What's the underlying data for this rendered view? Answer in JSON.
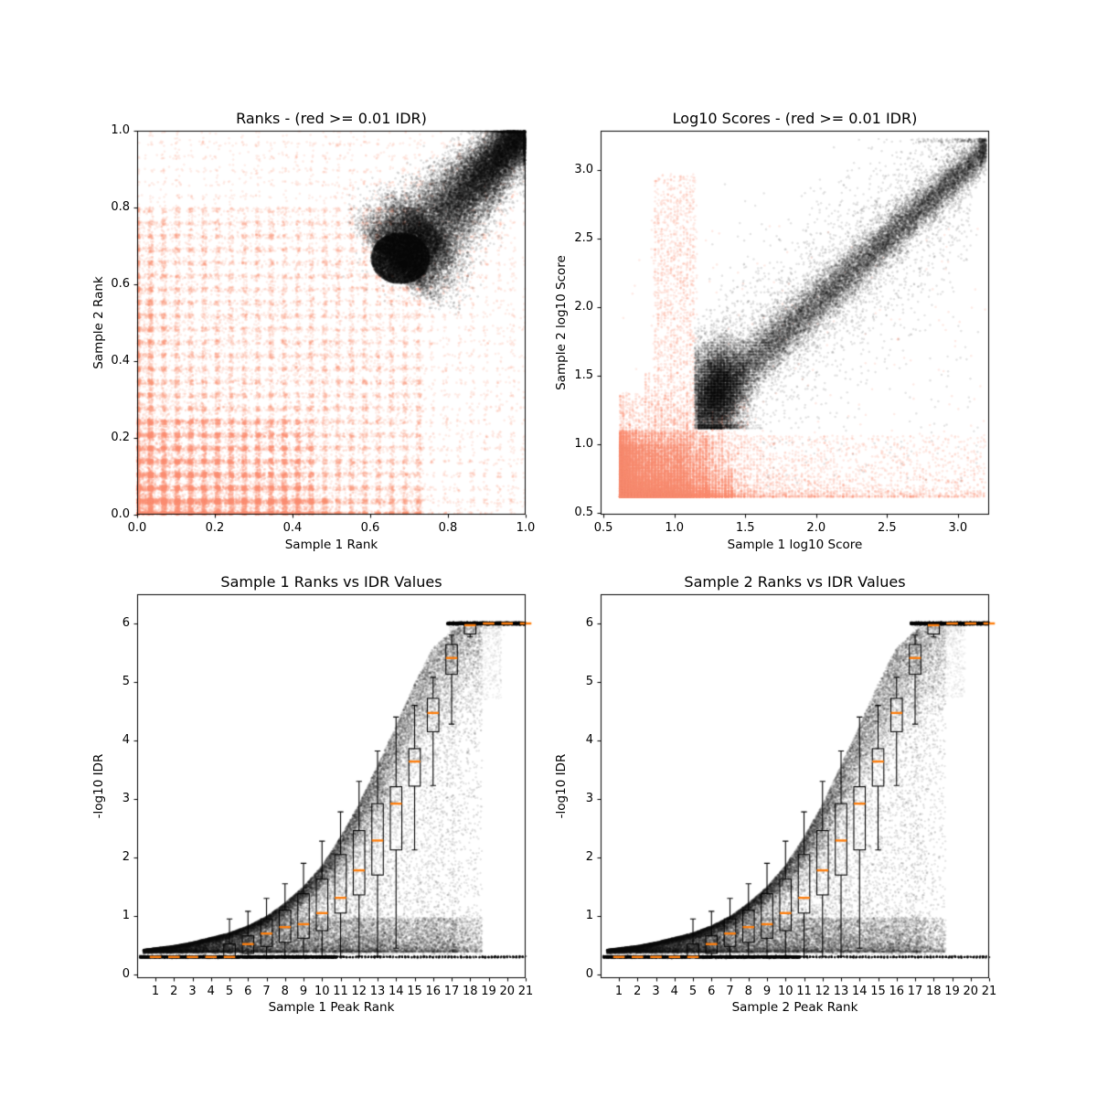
{
  "figure": {
    "background": "#ffffff"
  },
  "colors": {
    "irreproducible": "#f98d70",
    "reproducible": "#000000",
    "median": "#ff7f0e",
    "axis": "#000000"
  },
  "threshold_note": "red >= 0.01 IDR",
  "chart_data": [
    {
      "id": "ranks",
      "type": "scatter",
      "title": "Ranks - (red >= 0.01 IDR)",
      "xlabel": "Sample 1 Rank",
      "ylabel": "Sample 2 Rank",
      "xlim": [
        0,
        1
      ],
      "ylim": [
        0,
        1
      ],
      "xtick_vals": [
        0,
        0.2,
        0.4,
        0.6,
        0.8,
        1.0
      ],
      "xtick_labels": [
        "0.0",
        "0.2",
        "0.4",
        "0.6",
        "0.8",
        "1.0"
      ],
      "ytick_vals": [
        0,
        0.2,
        0.4,
        0.6,
        0.8,
        1.0
      ],
      "ytick_labels": [
        "0.0",
        "0.2",
        "0.4",
        "0.6",
        "0.8",
        "1.0"
      ],
      "grid": false,
      "series": [
        {
          "name": "IDR >= 0.01",
          "color_key": "irreproducible",
          "shape": "plaid-banded cloud concentrated at low ranks",
          "grid_step": 0.0345,
          "x_extent": [
            0,
            1
          ],
          "y_extent": [
            0,
            1
          ]
        },
        {
          "name": "IDR < 0.01",
          "color_key": "reproducible",
          "shape": "comet from bulb to top-right corner",
          "band_start": [
            0.662,
            0.652
          ],
          "band_end": [
            0.995,
            0.995
          ],
          "bulb_center": [
            0.678,
            0.668
          ],
          "bulb_rx": 0.075,
          "bulb_ry": 0.066
        }
      ]
    },
    {
      "id": "log10_scores",
      "type": "scatter",
      "title": "Log10 Scores - (red >= 0.01 IDR)",
      "xlabel": "Sample 1 log10 Score",
      "ylabel": "Sample 2 log10 Score",
      "xlim": [
        0.48,
        3.22
      ],
      "ylim": [
        0.487,
        3.287
      ],
      "xtick_vals": [
        0.5,
        1.0,
        1.5,
        2.0,
        2.5,
        3.0
      ],
      "xtick_labels": [
        "0.5",
        "1.0",
        "1.5",
        "2.0",
        "2.5",
        "3.0"
      ],
      "ytick_vals": [
        0.5,
        1.0,
        1.5,
        2.0,
        2.5,
        3.0
      ],
      "ytick_labels": [
        "0.5",
        "1.0",
        "1.5",
        "2.0",
        "2.5",
        "3.0"
      ],
      "grid": false,
      "series": [
        {
          "name": "IDR >= 0.01",
          "color_key": "irreproducible",
          "shape": "dense block with comb striations",
          "block_origin": [
            0.617,
            0.617
          ],
          "block_x_span": 0.62,
          "block_y_span": 0.48,
          "comb_step": 0.0225,
          "tall_column_x": [
            0.85,
            1.15
          ],
          "tall_column_ymax": 2.97,
          "right_tail_xmax": 3.22
        },
        {
          "name": "IDR < 0.01",
          "color_key": "reproducible",
          "shape": "diagonal band y ~= 0.155 + 0.935x",
          "slope": 0.935,
          "intercept": 0.155,
          "x_range": [
            1.145,
            3.22
          ],
          "nose_center": [
            1.31,
            1.4
          ],
          "floor_y": 1.115
        }
      ]
    },
    {
      "id": "sample1_rank_vs_idr",
      "type": "scatter+boxplot",
      "title": "Sample 1 Ranks vs IDR Values",
      "xlabel": "Sample 1 Peak Rank",
      "ylabel": "-log10 IDR",
      "xlim": [
        0.01,
        21.0
      ],
      "ylim": [
        -0.0625,
        6.5
      ],
      "xtick_vals": [
        1,
        2,
        3,
        4,
        5,
        6,
        7,
        8,
        9,
        10,
        11,
        12,
        13,
        14,
        15,
        16,
        17,
        18,
        19,
        20,
        21
      ],
      "xtick_labels": [
        "1",
        "2",
        "3",
        "4",
        "5",
        "6",
        "7",
        "8",
        "9",
        "10",
        "11",
        "12",
        "13",
        "14",
        "15",
        "16",
        "17",
        "18",
        "19",
        "20",
        "21"
      ],
      "ytick_vals": [
        0,
        1,
        2,
        3,
        4,
        5,
        6
      ],
      "ytick_labels": [
        "0",
        "1",
        "2",
        "3",
        "4",
        "5",
        "6"
      ],
      "grid": false,
      "baseline_y": 0.3,
      "baseline_solid_xmax": 10.8,
      "plateau_y": 6.0,
      "plateau_xmin": 16.75,
      "envelope": [
        [
          0.3,
          0.42
        ],
        [
          1,
          0.45
        ],
        [
          2,
          0.49
        ],
        [
          3,
          0.55
        ],
        [
          4,
          0.63
        ],
        [
          5,
          0.71
        ],
        [
          6,
          0.83
        ],
        [
          7,
          0.99
        ],
        [
          8,
          1.22
        ],
        [
          9,
          1.5
        ],
        [
          10,
          1.86
        ],
        [
          11,
          2.35
        ],
        [
          12,
          2.91
        ],
        [
          13,
          3.58
        ],
        [
          14,
          4.25
        ],
        [
          15,
          4.97
        ],
        [
          16,
          5.59
        ],
        [
          17,
          5.87
        ],
        [
          17.7,
          5.99
        ],
        [
          18.4,
          6.0
        ],
        [
          21.0,
          6.0
        ]
      ],
      "boxplots": {
        "ranks": [
          1,
          2,
          3,
          4,
          5,
          6,
          7,
          8,
          9,
          10,
          11,
          12,
          13,
          14,
          15,
          16,
          17,
          18,
          19,
          20,
          21
        ],
        "median": [
          0.3,
          0.3,
          0.3,
          0.3,
          0.3,
          0.52,
          0.7,
          0.81,
          0.86,
          1.05,
          1.31,
          1.78,
          2.29,
          2.92,
          3.64,
          4.47,
          5.41,
          5.97,
          6.0,
          6.0,
          6.0
        ],
        "q1": [
          0.3,
          0.3,
          0.3,
          0.3,
          0.3,
          0.36,
          0.48,
          0.55,
          0.62,
          0.75,
          1.05,
          1.36,
          1.7,
          2.13,
          3.22,
          4.15,
          5.13,
          5.82,
          6.0,
          6.0,
          6.0
        ],
        "q3": [
          0.3,
          0.3,
          0.3,
          0.3,
          0.52,
          0.66,
          0.95,
          1.1,
          1.38,
          1.63,
          2.05,
          2.46,
          2.92,
          3.21,
          3.86,
          4.72,
          5.64,
          5.99,
          6.0,
          6.0,
          6.0
        ],
        "whisker_low": [
          0.3,
          0.3,
          0.3,
          0.3,
          0.3,
          0.31,
          0.31,
          0.31,
          0.31,
          0.31,
          0.31,
          0.31,
          0.31,
          0.45,
          2.13,
          3.23,
          4.28,
          5.77,
          6.0,
          6.0,
          6.0
        ],
        "whisker_high": [
          0.3,
          0.3,
          0.3,
          0.3,
          0.95,
          1.08,
          1.3,
          1.55,
          1.9,
          2.28,
          2.78,
          3.3,
          3.82,
          4.4,
          4.6,
          5.08,
          5.8,
          6.0,
          6.0,
          6.0,
          6.0
        ]
      },
      "seed": 777
    },
    {
      "id": "sample2_rank_vs_idr",
      "type": "scatter+boxplot",
      "title": "Sample 2 Ranks vs IDR Values",
      "xlabel": "Sample 2 Peak Rank",
      "ylabel": "-log10 IDR",
      "xlim": [
        0.01,
        21.0
      ],
      "ylim": [
        -0.0625,
        6.5
      ],
      "xtick_vals": [
        1,
        2,
        3,
        4,
        5,
        6,
        7,
        8,
        9,
        10,
        11,
        12,
        13,
        14,
        15,
        16,
        17,
        18,
        19,
        20,
        21
      ],
      "xtick_labels": [
        "1",
        "2",
        "3",
        "4",
        "5",
        "6",
        "7",
        "8",
        "9",
        "10",
        "11",
        "12",
        "13",
        "14",
        "15",
        "16",
        "17",
        "18",
        "19",
        "20",
        "21"
      ],
      "ytick_vals": [
        0,
        1,
        2,
        3,
        4,
        5,
        6
      ],
      "ytick_labels": [
        "0",
        "1",
        "2",
        "3",
        "4",
        "5",
        "6"
      ],
      "grid": false,
      "baseline_y": 0.3,
      "baseline_solid_xmax": 10.8,
      "plateau_y": 6.0,
      "plateau_xmin": 16.75,
      "envelope": [
        [
          0.3,
          0.42
        ],
        [
          1,
          0.45
        ],
        [
          2,
          0.49
        ],
        [
          3,
          0.55
        ],
        [
          4,
          0.63
        ],
        [
          5,
          0.71
        ],
        [
          6,
          0.83
        ],
        [
          7,
          0.99
        ],
        [
          8,
          1.22
        ],
        [
          9,
          1.5
        ],
        [
          10,
          1.86
        ],
        [
          11,
          2.35
        ],
        [
          12,
          2.91
        ],
        [
          13,
          3.58
        ],
        [
          14,
          4.25
        ],
        [
          15,
          4.97
        ],
        [
          16,
          5.59
        ],
        [
          17,
          5.87
        ],
        [
          17.7,
          5.99
        ],
        [
          18.4,
          6.0
        ],
        [
          21.0,
          6.0
        ]
      ],
      "boxplots": {
        "ranks": [
          1,
          2,
          3,
          4,
          5,
          6,
          7,
          8,
          9,
          10,
          11,
          12,
          13,
          14,
          15,
          16,
          17,
          18,
          19,
          20,
          21
        ],
        "median": [
          0.3,
          0.3,
          0.3,
          0.3,
          0.3,
          0.52,
          0.7,
          0.81,
          0.86,
          1.05,
          1.31,
          1.78,
          2.29,
          2.92,
          3.64,
          4.47,
          5.41,
          5.97,
          6.0,
          6.0,
          6.0
        ],
        "q1": [
          0.3,
          0.3,
          0.3,
          0.3,
          0.3,
          0.36,
          0.48,
          0.55,
          0.62,
          0.75,
          1.05,
          1.36,
          1.7,
          2.13,
          3.22,
          4.15,
          5.13,
          5.82,
          6.0,
          6.0,
          6.0
        ],
        "q3": [
          0.3,
          0.3,
          0.3,
          0.3,
          0.52,
          0.66,
          0.95,
          1.1,
          1.38,
          1.63,
          2.05,
          2.46,
          2.92,
          3.21,
          3.86,
          4.72,
          5.64,
          5.99,
          6.0,
          6.0,
          6.0
        ],
        "whisker_low": [
          0.3,
          0.3,
          0.3,
          0.3,
          0.3,
          0.31,
          0.31,
          0.31,
          0.31,
          0.31,
          0.31,
          0.31,
          0.31,
          0.45,
          2.13,
          3.23,
          4.28,
          5.77,
          6.0,
          6.0,
          6.0
        ],
        "whisker_high": [
          0.3,
          0.3,
          0.3,
          0.3,
          0.95,
          1.08,
          1.3,
          1.55,
          1.9,
          2.28,
          2.78,
          3.3,
          3.82,
          4.4,
          4.6,
          5.08,
          5.8,
          6.0,
          6.0,
          6.0,
          6.0
        ]
      },
      "seed": 991
    }
  ]
}
